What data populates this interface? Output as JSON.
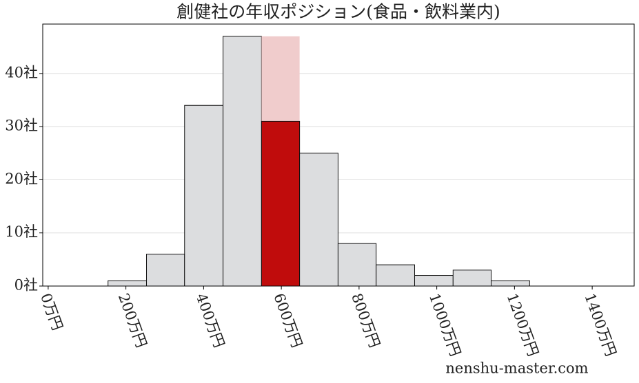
{
  "chart_data": {
    "type": "histogram",
    "title": "創健社の年収ポジション(食品・飲料業内)",
    "watermark": "nenshu-master.com",
    "bins": [
      154,
      253,
      351,
      450,
      549,
      647,
      746,
      844,
      943,
      1042,
      1140,
      1239
    ],
    "values": [
      1,
      6,
      34,
      47,
      31,
      25,
      8,
      4,
      2,
      3,
      1
    ],
    "color": "#dcdddf",
    "highlight_index": 4,
    "highlight_color": "#c00c0c",
    "highlight_band_color": "#f0cccc",
    "xlim": [
      -14,
      1508
    ],
    "ylim": [
      0,
      49.3
    ],
    "xticks": [
      {
        "value": 0,
        "label": "0万円"
      },
      {
        "value": 200,
        "label": "200万円"
      },
      {
        "value": 400,
        "label": "400万円"
      },
      {
        "value": 600,
        "label": "600万円"
      },
      {
        "value": 800,
        "label": "800万円"
      },
      {
        "value": 1000,
        "label": "1000万円"
      },
      {
        "value": 1200,
        "label": "1200万円"
      },
      {
        "value": 1400,
        "label": "1400万円"
      }
    ],
    "yticks": [
      {
        "value": 0,
        "label": "0社"
      },
      {
        "value": 10,
        "label": "10社"
      },
      {
        "value": 20,
        "label": "20社"
      },
      {
        "value": 30,
        "label": "30社"
      },
      {
        "value": 40,
        "label": "40社"
      }
    ],
    "grid": true
  }
}
